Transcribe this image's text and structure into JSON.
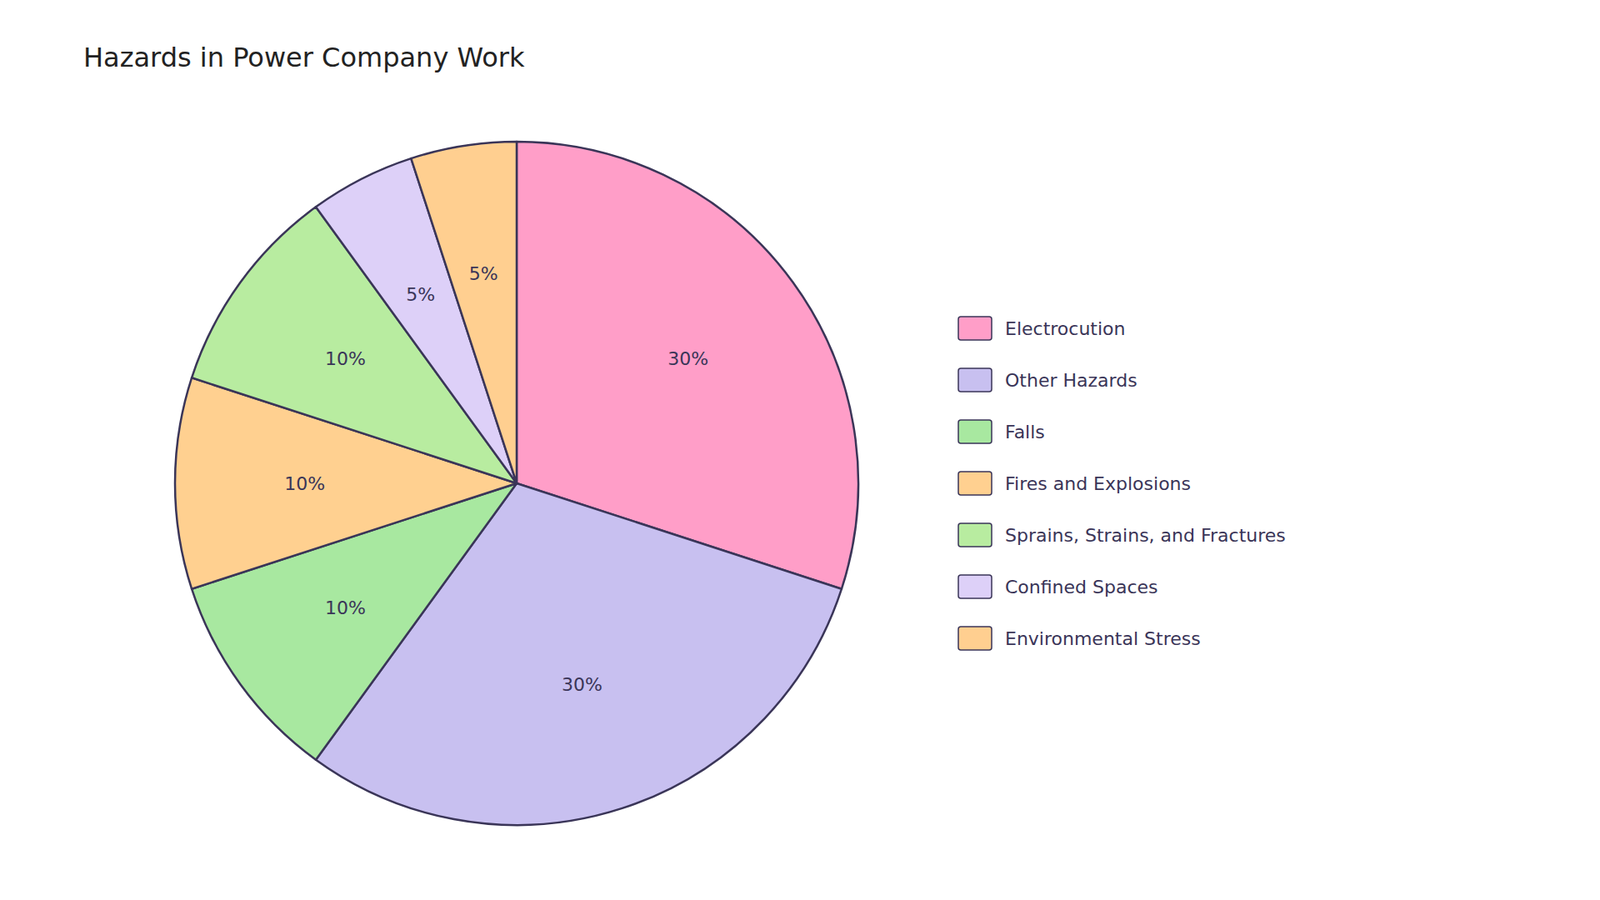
{
  "chart_data": {
    "type": "pie",
    "title": "Hazards in Power Company Work",
    "categories": [
      "Electrocution",
      "Other Hazards",
      "Falls",
      "Fires and Explosions",
      "Sprains, Strains, and Fractures",
      "Confined Spaces",
      "Environmental Stress"
    ],
    "values": [
      30,
      30,
      10,
      10,
      10,
      5,
      5
    ],
    "value_labels": [
      "30%",
      "30%",
      "10%",
      "10%",
      "10%",
      "5%",
      "5%"
    ],
    "colors": [
      "#FF9EC8",
      "#C8C0F0",
      "#A8E8A0",
      "#FFD090",
      "#B8ECA0",
      "#DDD0F8",
      "#FFCF90"
    ],
    "data_labels": true,
    "legend": "right"
  }
}
